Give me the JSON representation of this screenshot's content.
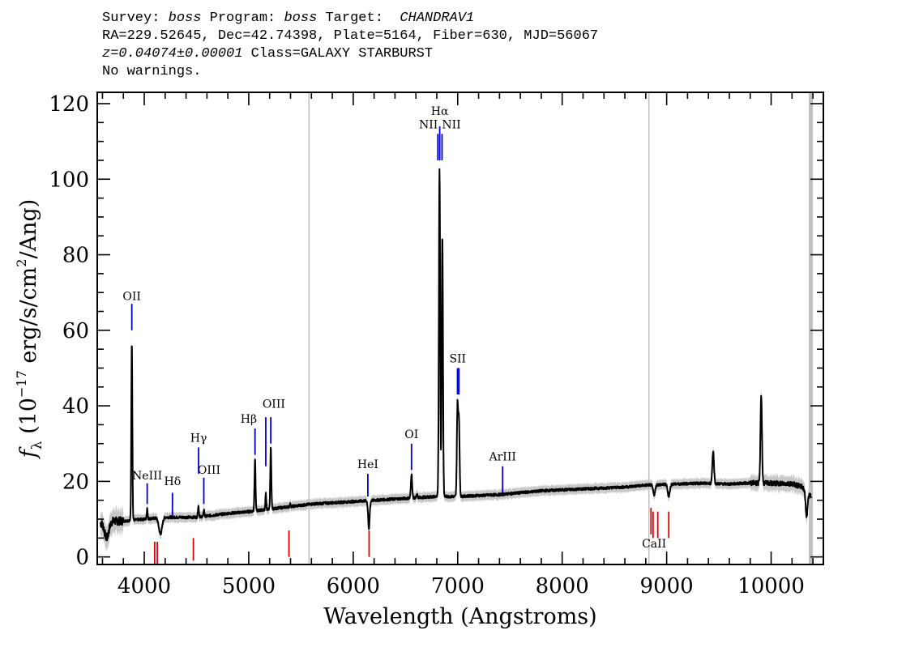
{
  "header": {
    "line1": {
      "survey_label": "Survey:",
      "survey": "boss",
      "program_label": "Program:",
      "program": "boss",
      "target_label": "Target:",
      "target": "CHANDRAV1"
    },
    "line2": "RA=229.52645, Dec=42.74398, Plate=5164, Fiber=630, MJD=56067",
    "line3": {
      "z": "z=0.04074±0.00001",
      "class": "Class=GALAXY STARBURST"
    },
    "line4": "No warnings."
  },
  "chart_data": {
    "type": "line",
    "xlabel": "Wavelength (Angstroms)",
    "ylabel_parts": {
      "f": "f",
      "sub": "λ",
      "pre": " (10",
      "exp1": "−17",
      "mid": " erg/s/cm",
      "exp2": "2",
      "post": "/Ang)"
    },
    "xlim": [
      3550,
      10500
    ],
    "ylim": [
      -2,
      123
    ],
    "x_ticks": [
      4000,
      5000,
      6000,
      7000,
      8000,
      9000,
      10000
    ],
    "y_ticks": [
      0,
      20,
      40,
      60,
      80,
      100,
      120
    ],
    "x_minor_step": 200,
    "y_minor_step": 5,
    "colors": {
      "spectrum": "#000000",
      "error": "#c8c8c8",
      "emission": "#0000d0",
      "absorption": "#e00000",
      "sky": "#c0c0c0"
    },
    "sky_lines": [
      5577,
      8830,
      10380
    ],
    "continuum": [
      [
        3600,
        9
      ],
      [
        3700,
        9.5
      ],
      [
        3800,
        9.5
      ],
      [
        4000,
        10
      ],
      [
        4200,
        10.5
      ],
      [
        4500,
        10.5
      ],
      [
        4800,
        11.5
      ],
      [
        5000,
        12
      ],
      [
        5300,
        13
      ],
      [
        5600,
        14
      ],
      [
        5900,
        14.5
      ],
      [
        6200,
        15
      ],
      [
        6500,
        15.5
      ],
      [
        6800,
        16
      ],
      [
        7000,
        16
      ],
      [
        7400,
        16.5
      ],
      [
        7800,
        17.5
      ],
      [
        8200,
        18
      ],
      [
        8600,
        18.5
      ],
      [
        8800,
        19
      ],
      [
        9000,
        19.2
      ],
      [
        9300,
        19.5
      ],
      [
        9600,
        19.3
      ],
      [
        9800,
        19.6
      ],
      [
        10000,
        19.5
      ],
      [
        10200,
        19.4
      ],
      [
        10300,
        18.5
      ],
      [
        10380,
        16
      ]
    ],
    "peaks": [
      {
        "x": 3881,
        "y": 57,
        "w": 5
      },
      {
        "x": 4028,
        "y": 13,
        "w": 4
      },
      {
        "x": 4518,
        "y": 13.5,
        "w": 5
      },
      {
        "x": 4571,
        "y": 12.5,
        "w": 4
      },
      {
        "x": 5060,
        "y": 26,
        "w": 5
      },
      {
        "x": 5163,
        "y": 17,
        "w": 4
      },
      {
        "x": 5211,
        "y": 29,
        "w": 5
      },
      {
        "x": 5396,
        "y": 14,
        "w": 4
      },
      {
        "x": 6150,
        "y": 13,
        "w": 4
      },
      {
        "x": 6558,
        "y": 22,
        "w": 6
      },
      {
        "x": 6611,
        "y": 16.5,
        "w": 5
      },
      {
        "x": 6826,
        "y": 103,
        "w": 6
      },
      {
        "x": 6853,
        "y": 85,
        "w": 6
      },
      {
        "x": 6998,
        "y": 40,
        "w": 6
      },
      {
        "x": 7012,
        "y": 36,
        "w": 6
      },
      {
        "x": 9445,
        "y": 28,
        "w": 8
      },
      {
        "x": 9905,
        "y": 43,
        "w": 7
      }
    ],
    "dips": [
      {
        "x": 3640,
        "y": 5,
        "w": 20
      },
      {
        "x": 4155,
        "y": 6,
        "w": 15
      },
      {
        "x": 6150,
        "y": 9,
        "w": 8
      },
      {
        "x": 8880,
        "y": 16.5,
        "w": 10
      },
      {
        "x": 9020,
        "y": 16,
        "w": 10
      },
      {
        "x": 10340,
        "y": 11,
        "w": 10
      }
    ],
    "emission_lines": [
      {
        "label": "OII",
        "x": 3881,
        "y0": 60,
        "y1": 67,
        "lx": 3881,
        "ly": 68
      },
      {
        "label": "NeIII",
        "x": 4028,
        "y0": 14,
        "y1": 19.5,
        "lx": 4028,
        "ly": 20.5
      },
      {
        "label": "Hδ",
        "x": 4270,
        "y0": 11,
        "y1": 17,
        "lx": 4270,
        "ly": 19
      },
      {
        "label": "Hγ",
        "x": 4520,
        "y0": 22,
        "y1": 29,
        "lx": 4520,
        "ly": 30.5
      },
      {
        "label": "OIII",
        "x": 4570,
        "y0": 14,
        "y1": 21,
        "lx": 4620,
        "ly": 22
      },
      {
        "label": "Hβ",
        "x": 5060,
        "y0": 27,
        "y1": 34,
        "lx": 5000,
        "ly": 35.5
      },
      {
        "label": "OIII",
        "x": 5163,
        "y0": 24,
        "y1": 37,
        "lx": 5240,
        "ly": 39.5
      },
      {
        "label": "OIII",
        "x": 5211,
        "y0": 30,
        "y1": 37,
        "lx": 5240,
        "ly": 39.5
      },
      {
        "label": "HeI",
        "x": 6140,
        "y0": 16,
        "y1": 22,
        "lx": 6140,
        "ly": 23.5
      },
      {
        "label": "OI",
        "x": 6558,
        "y0": 23,
        "y1": 30,
        "lx": 6558,
        "ly": 31.5
      },
      {
        "label": "NII",
        "x": 6810,
        "y0": 105,
        "y1": 112,
        "lx": 6720,
        "ly": 113.5
      },
      {
        "label": "Hα",
        "x": 6828,
        "y0": 105,
        "y1": 114,
        "lx": 6828,
        "ly": 117
      },
      {
        "label": "NII",
        "x": 6850,
        "y0": 105,
        "y1": 112,
        "lx": 6940,
        "ly": 113.5
      },
      {
        "label": "SII",
        "x": 6998,
        "y0": 43,
        "y1": 50,
        "lx": 7000,
        "ly": 51.5
      },
      {
        "label": "SII",
        "x": 7012,
        "y0": 43,
        "y1": 50,
        "lx": 7000,
        "ly": 51.5
      },
      {
        "label": "ArIII",
        "x": 7430,
        "y0": 17,
        "y1": 24,
        "lx": 7430,
        "ly": 25.5
      }
    ],
    "absorption_lines": [
      {
        "label": "",
        "x": 4100,
        "y0": -2,
        "y1": 4
      },
      {
        "label": "",
        "x": 4125,
        "y0": -2,
        "y1": 4
      },
      {
        "label": "",
        "x": 4470,
        "y0": -1,
        "y1": 5
      },
      {
        "label": "",
        "x": 5385,
        "y0": 0,
        "y1": 7
      },
      {
        "label": "",
        "x": 6152,
        "y0": 0,
        "y1": 7
      },
      {
        "label": "CaII",
        "x": 8850,
        "y0": 6,
        "y1": 13,
        "lx": 8880,
        "ly": 2.5
      },
      {
        "label": "",
        "x": 8870,
        "y0": 5,
        "y1": 12
      },
      {
        "label": "",
        "x": 8915,
        "y0": 5,
        "y1": 12
      },
      {
        "label": "",
        "x": 9020,
        "y0": 5,
        "y1": 12
      }
    ]
  }
}
